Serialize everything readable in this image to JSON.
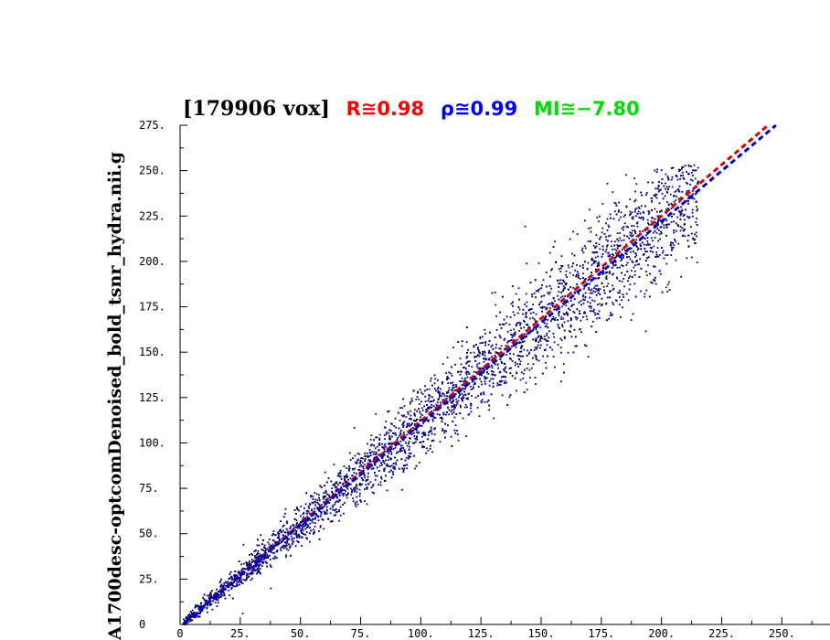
{
  "chart_data": {
    "type": "scatter",
    "title": {
      "vox": "[179906 vox]",
      "r": "R≅0.98",
      "rho": "ρ≅0.99",
      "mi": "MI≅−7.80"
    },
    "ylabel": "A1700desc-optcomDenoised_bold_tsnr_hydra.nii.g",
    "xlim": [
      0,
      270
    ],
    "ylim": [
      0,
      275
    ],
    "xticks": [
      "0",
      "25.",
      "50.",
      "75.",
      "100.",
      "125.",
      "150.",
      "175.",
      "200.",
      "225.",
      "250."
    ],
    "yticks": [
      "0",
      "25.",
      "50.",
      "75.",
      "100.",
      "125.",
      "150.",
      "175.",
      "200.",
      "225.",
      "250.",
      "275."
    ],
    "grid": false,
    "point_count": 179906,
    "fit_lines": [
      {
        "name": "R",
        "color": "#d40000",
        "slope": 1.13,
        "intercept": -1.0
      },
      {
        "name": "rho",
        "color": "#0000cc",
        "slope": 1.115,
        "intercept": -1.0
      }
    ],
    "colors": {
      "points": "#000080",
      "r": "#ff0000",
      "rho": "#0000ff",
      "mi": "#00e000",
      "title": "#000000"
    }
  }
}
